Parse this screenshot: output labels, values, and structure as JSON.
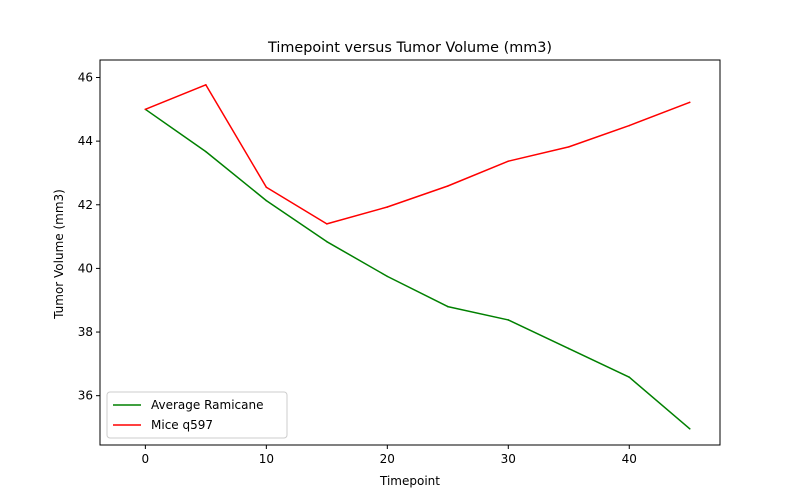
{
  "chart_data": {
    "type": "line",
    "title": "Timepoint versus Tumor Volume (mm3)",
    "xlabel": "Timepoint",
    "ylabel": "Tumor Volume (mm3)",
    "xlim": [
      -3.75,
      47.5
    ],
    "ylim": [
      34.45,
      46.55
    ],
    "xticks": [
      0,
      10,
      20,
      30,
      40
    ],
    "yticks": [
      36,
      38,
      40,
      42,
      44,
      46
    ],
    "grid": false,
    "legend_position": "lower-left",
    "x": [
      0,
      5,
      10,
      15,
      20,
      25,
      30,
      35,
      40,
      45
    ],
    "series": [
      {
        "name": "Average Ramicane",
        "color": "#008000",
        "values": [
          45.0,
          43.67,
          42.13,
          40.84,
          39.75,
          38.8,
          38.38,
          37.48,
          36.58,
          34.96
        ]
      },
      {
        "name": "Mice q597",
        "color": "#ff0000",
        "values": [
          45.0,
          45.77,
          42.55,
          41.4,
          41.93,
          42.59,
          43.37,
          43.82,
          44.49,
          45.22
        ]
      }
    ]
  }
}
